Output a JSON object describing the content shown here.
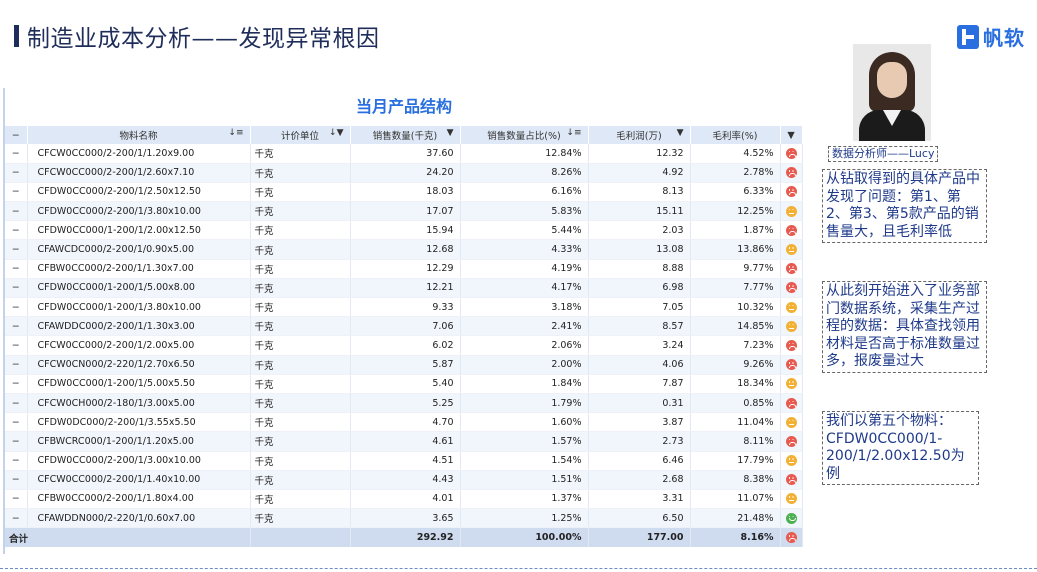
{
  "header": {
    "title": "制造业成本分析——发现异常根因",
    "brand": "帆软"
  },
  "report": {
    "title": "当月产品结构",
    "columns": [
      "物料名称",
      "计价单位",
      "销售数量(千克)",
      "销售数量占比(%)",
      "毛利润(万)",
      "毛利率(%)"
    ],
    "header_minus": "−",
    "rows": [
      {
        "name": "CFCW0CC000/2-200/1/1.20x9.00",
        "unit": "千克",
        "qty": "37.60",
        "share": "12.84%",
        "profit": "12.32",
        "margin": "4.52%",
        "status": "red"
      },
      {
        "name": "CFCW0CC000/2-200/1/2.60x7.10",
        "unit": "千克",
        "qty": "24.20",
        "share": "8.26%",
        "profit": "4.92",
        "margin": "2.78%",
        "status": "red"
      },
      {
        "name": "CFDW0CC000/2-200/1/2.50x12.50",
        "unit": "千克",
        "qty": "18.03",
        "share": "6.16%",
        "profit": "8.13",
        "margin": "6.33%",
        "status": "red"
      },
      {
        "name": "CFDW0CC000/2-200/1/3.80x10.00",
        "unit": "千克",
        "qty": "17.07",
        "share": "5.83%",
        "profit": "15.11",
        "margin": "12.25%",
        "status": "orange"
      },
      {
        "name": "CFDW0CC000/1-200/1/2.00x12.50",
        "unit": "千克",
        "qty": "15.94",
        "share": "5.44%",
        "profit": "2.03",
        "margin": "1.87%",
        "status": "red"
      },
      {
        "name": "CFAWCDC000/2-200/1/0.90x5.00",
        "unit": "千克",
        "qty": "12.68",
        "share": "4.33%",
        "profit": "13.08",
        "margin": "13.86%",
        "status": "orange"
      },
      {
        "name": "CFBW0CC000/2-200/1/1.30x7.00",
        "unit": "千克",
        "qty": "12.29",
        "share": "4.19%",
        "profit": "8.88",
        "margin": "9.77%",
        "status": "red"
      },
      {
        "name": "CFDW0CC000/1-200/1/5.00x8.00",
        "unit": "千克",
        "qty": "12.21",
        "share": "4.17%",
        "profit": "6.98",
        "margin": "7.77%",
        "status": "red"
      },
      {
        "name": "CFDW0CC000/1-200/1/3.80x10.00",
        "unit": "千克",
        "qty": "9.33",
        "share": "3.18%",
        "profit": "7.05",
        "margin": "10.32%",
        "status": "orange"
      },
      {
        "name": "CFAWDDC000/2-200/1/1.30x3.00",
        "unit": "千克",
        "qty": "7.06",
        "share": "2.41%",
        "profit": "8.57",
        "margin": "14.85%",
        "status": "orange"
      },
      {
        "name": "CFCW0CC000/2-200/1/2.00x5.00",
        "unit": "千克",
        "qty": "6.02",
        "share": "2.06%",
        "profit": "3.24",
        "margin": "7.23%",
        "status": "red"
      },
      {
        "name": "CFCW0CN000/2-220/1/2.70x6.50",
        "unit": "千克",
        "qty": "5.87",
        "share": "2.00%",
        "profit": "4.06",
        "margin": "9.26%",
        "status": "red"
      },
      {
        "name": "CFDW0CC000/1-200/1/5.00x5.50",
        "unit": "千克",
        "qty": "5.40",
        "share": "1.84%",
        "profit": "7.87",
        "margin": "18.34%",
        "status": "orange"
      },
      {
        "name": "CFCW0CH000/2-180/1/3.00x5.00",
        "unit": "千克",
        "qty": "5.25",
        "share": "1.79%",
        "profit": "0.31",
        "margin": "0.85%",
        "status": "red"
      },
      {
        "name": "CFDW0DC000/2-200/1/3.55x5.50",
        "unit": "千克",
        "qty": "4.70",
        "share": "1.60%",
        "profit": "3.87",
        "margin": "11.04%",
        "status": "orange"
      },
      {
        "name": "CFBWCRC000/1-200/1/1.20x5.00",
        "unit": "千克",
        "qty": "4.61",
        "share": "1.57%",
        "profit": "2.73",
        "margin": "8.11%",
        "status": "red"
      },
      {
        "name": "CFDW0CC000/2-200/1/3.00x10.00",
        "unit": "千克",
        "qty": "4.51",
        "share": "1.54%",
        "profit": "6.46",
        "margin": "17.79%",
        "status": "orange"
      },
      {
        "name": "CFCW0CC000/2-200/1/1.40x10.00",
        "unit": "千克",
        "qty": "4.43",
        "share": "1.51%",
        "profit": "2.68",
        "margin": "8.38%",
        "status": "red"
      },
      {
        "name": "CFBW0CC000/2-200/1/1.80x4.00",
        "unit": "千克",
        "qty": "4.01",
        "share": "1.37%",
        "profit": "3.31",
        "margin": "11.07%",
        "status": "orange"
      },
      {
        "name": "CFAWDDN000/2-220/1/0.60x7.00",
        "unit": "千克",
        "qty": "3.65",
        "share": "1.25%",
        "profit": "6.50",
        "margin": "21.48%",
        "status": "green"
      }
    ],
    "total": {
      "label": "合计",
      "qty": "292.92",
      "share": "100.00%",
      "profit": "177.00",
      "margin": "8.16%",
      "status": "red"
    }
  },
  "analyst": {
    "label": "数据分析师——Lucy"
  },
  "notes": [
    "从钻取得到的具体产品中发现了问题：第1、第2、第3、第5款产品的销售量大，且毛利率低",
    "从此刻开始进入了业务部门数据系统，采集生产过程的数据：具体查找领用材料是否高于标准数量过多，报废量过大",
    "我们以第五个物料：CFDW0CC000/1-200/1/2.00x12.50为例"
  ],
  "status_colors": {
    "red": "#e85a4f",
    "orange": "#f2b035",
    "green": "#4caf50"
  }
}
